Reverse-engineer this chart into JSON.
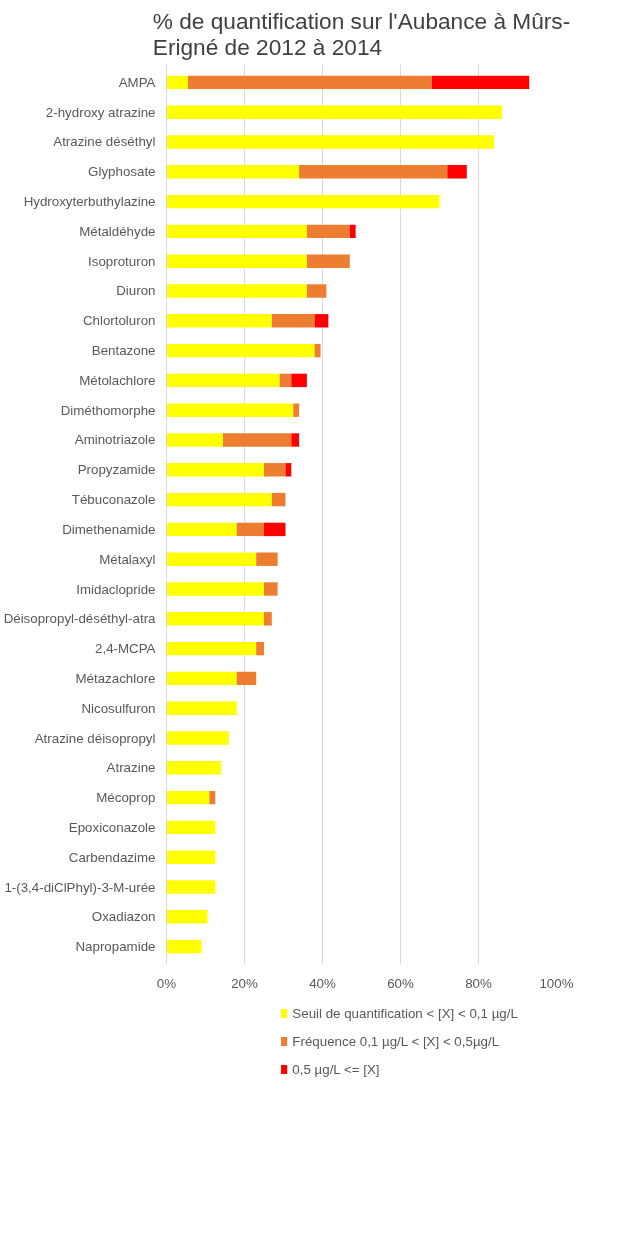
{
  "chart_data": {
    "type": "bar",
    "orientation": "horizontal",
    "stacked": true,
    "title": "% de quantification sur l'Aubance à Mûrs-Erigné de 2012 à 2014",
    "categories": [
      "AMPA",
      "2-hydroxy atrazine",
      "Atrazine déséthyl",
      "Glyphosate",
      "Hydroxyterbuthylazine",
      "Métaldéhyde",
      "Isoproturon",
      "Diuron",
      "Chlortoluron",
      "Bentazone",
      "Métolachlore",
      "Diméthomorphe",
      "Aminotriazole",
      "Propyzamide",
      "Tébuconazole",
      "Dimethenamide",
      "Métalaxyl",
      "Imidaclopride",
      "Déisopropyl-déséthyl-atra",
      "2,4-MCPA",
      "Métazachlore",
      "Nicosulfuron",
      "Atrazine déisopropyl",
      "Atrazine",
      "Mécoprop",
      "Epoxiconazole",
      "Carbendazime",
      "1-(3,4-diClPhyl)-3-M-urée",
      "Oxadiazon",
      "Napropamide"
    ],
    "series": [
      {
        "name": "Seuil de quantification < [X] < 0,1 µg/L",
        "color": "#ffff00",
        "values": [
          5.5,
          86,
          84,
          34,
          70,
          36,
          36,
          36,
          27,
          38,
          29,
          32.5,
          14.5,
          25,
          27,
          18,
          23,
          25,
          25,
          23,
          18,
          18,
          16,
          14,
          11,
          12.5,
          12.5,
          12.5,
          10.5,
          9
        ]
      },
      {
        "name": "Fréquence 0,1 µg/L < [X] < 0,5µg/L",
        "color": "#ed7d31",
        "values": [
          62.5,
          null,
          null,
          38,
          null,
          11,
          11,
          5,
          11,
          1.5,
          3,
          1.5,
          17.5,
          5.5,
          3.5,
          7,
          5.5,
          3.5,
          2,
          2,
          5,
          null,
          null,
          null,
          1.5,
          null,
          null,
          null,
          null,
          null
        ]
      },
      {
        "name": "0,5 µg/L <= [X]",
        "color": "#ff0000",
        "values": [
          25,
          null,
          null,
          5,
          null,
          1.5,
          null,
          null,
          3.5,
          null,
          4,
          null,
          2,
          1.5,
          null,
          5.5,
          null,
          null,
          null,
          null,
          null,
          null,
          null,
          null,
          null,
          null,
          null,
          null,
          null,
          null
        ]
      }
    ],
    "xlim": [
      0,
      100
    ],
    "xticks": [
      {
        "value": 0,
        "label": "0%"
      },
      {
        "value": 20,
        "label": "20%"
      },
      {
        "value": 40,
        "label": "40%"
      },
      {
        "value": 60,
        "label": "60%"
      },
      {
        "value": 80,
        "label": "80%"
      },
      {
        "value": 100,
        "label": "100%"
      }
    ],
    "grid": "x",
    "legend": "bottom"
  }
}
